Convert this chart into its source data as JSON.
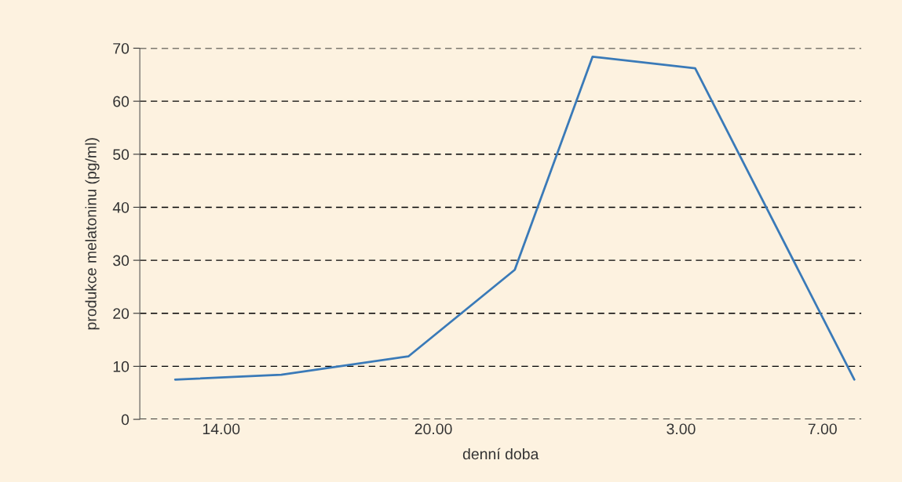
{
  "chart_data": {
    "type": "line",
    "xlabel": "denní doba",
    "ylabel": "produkce melatoninu (pg/ml)",
    "x": [
      "2000-01-01T12:42",
      "2000-01-01T15:42",
      "2000-01-01T19:18",
      "2000-01-01T22:18",
      "2000-01-02T00:30",
      "2000-01-02T03:24",
      "2000-01-02T07:54"
    ],
    "series": [
      {
        "color": "#3a7ab8",
        "values": [
          7.5,
          8.4,
          11.9,
          28.2,
          68.4,
          66.2,
          7.5
        ]
      }
    ],
    "xlim": [
      "2000-01-01T11:42",
      "2000-01-02T08:06"
    ],
    "xticks": [
      {
        "value": "2000-01-01T14:00",
        "label": "14.00"
      },
      {
        "value": "2000-01-01T20:00",
        "label": "20.00"
      },
      {
        "value": "2000-01-02T03:00",
        "label": "3.00"
      },
      {
        "value": "2000-01-02T07:00",
        "label": "7.00"
      }
    ],
    "ylim": [
      0,
      70
    ],
    "yticks": [
      0,
      10,
      20,
      30,
      40,
      50,
      60,
      70
    ],
    "grid": "y",
    "line_style": "solid",
    "marker": "none",
    "legend": false
  }
}
